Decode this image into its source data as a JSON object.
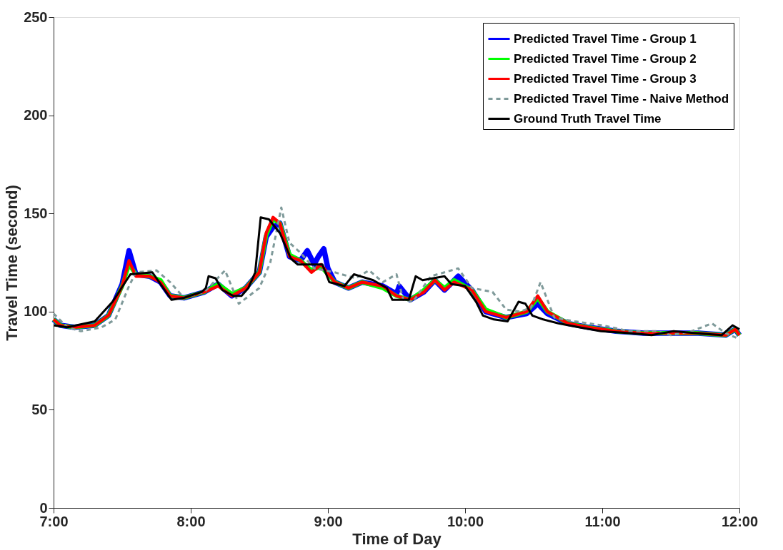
{
  "chart_data": {
    "type": "line",
    "xlabel": "Time of Day",
    "ylabel": "Travel Time (second)",
    "xlim": [
      7,
      12
    ],
    "ylim": [
      0,
      250
    ],
    "xticks": [
      {
        "value": 7,
        "label": "7:00"
      },
      {
        "value": 8,
        "label": "8:00"
      },
      {
        "value": 9,
        "label": "9:00"
      },
      {
        "value": 10,
        "label": "10:00"
      },
      {
        "value": 11,
        "label": "11:00"
      },
      {
        "value": 12,
        "label": "12:00"
      }
    ],
    "yticks": [
      0,
      50,
      100,
      150,
      200,
      250
    ],
    "grid": false,
    "legend": "top right",
    "marker": "none",
    "series": [
      {
        "name": "Predicted Travel Time - Group 1",
        "color": "#0000ff",
        "line_style": "solid",
        "x": [
          7,
          7.05,
          7.15,
          7.3,
          7.4,
          7.5,
          7.55,
          7.6,
          7.7,
          7.78,
          7.85,
          7.95,
          8.1,
          8.2,
          8.3,
          8.4,
          8.5,
          8.55,
          8.6,
          8.65,
          8.72,
          8.8,
          8.85,
          8.9,
          8.93,
          8.97,
          9.0,
          9.05,
          9.15,
          9.25,
          9.4,
          9.5,
          9.52,
          9.6,
          9.7,
          9.78,
          9.85,
          9.95,
          10.05,
          10.15,
          10.3,
          10.45,
          10.53,
          10.6,
          10.75,
          10.9,
          11.1,
          11.3,
          11.5,
          11.7,
          11.9,
          11.97,
          12
        ],
        "values": [
          96,
          93,
          92,
          93,
          98,
          114,
          131,
          119,
          118,
          115,
          108,
          107,
          110,
          114,
          108,
          112,
          120,
          138,
          143,
          145,
          128,
          126,
          131,
          124,
          128,
          132,
          122,
          115,
          112,
          115,
          113,
          109,
          113,
          106,
          110,
          116,
          111,
          118,
          111,
          100,
          97,
          99,
          104,
          99,
          94,
          92,
          90,
          89,
          89,
          89,
          88,
          91,
          88
        ]
      },
      {
        "name": "Predicted Travel Time - Group 2",
        "color": "#00ff00",
        "line_style": "solid",
        "x": [
          7,
          7.05,
          7.15,
          7.3,
          7.4,
          7.5,
          7.55,
          7.6,
          7.7,
          7.78,
          7.85,
          7.95,
          8.1,
          8.2,
          8.3,
          8.4,
          8.5,
          8.55,
          8.6,
          8.65,
          8.72,
          8.8,
          8.88,
          8.95,
          9.05,
          9.15,
          9.25,
          9.4,
          9.5,
          9.6,
          9.7,
          9.78,
          9.85,
          9.92,
          10.05,
          10.15,
          10.3,
          10.45,
          10.53,
          10.6,
          10.75,
          10.9,
          11.1,
          11.3,
          11.5,
          11.7,
          11.9,
          11.97,
          12
        ],
        "values": [
          96,
          93,
          92,
          93,
          98,
          113,
          124,
          119,
          118,
          116,
          108,
          107,
          110,
          114,
          109,
          112,
          120,
          139,
          147,
          145,
          129,
          126,
          121,
          123,
          115,
          112,
          115,
          112,
          108,
          106,
          111,
          116,
          112,
          116,
          111,
          101,
          97,
          100,
          107,
          100,
          94,
          92,
          90,
          89,
          89,
          89,
          88,
          91,
          88
        ]
      },
      {
        "name": "Predicted Travel Time - Group 3",
        "color": "#ff0000",
        "line_style": "solid",
        "x": [
          7,
          7.05,
          7.15,
          7.3,
          7.4,
          7.5,
          7.55,
          7.6,
          7.7,
          7.78,
          7.85,
          7.95,
          8.1,
          8.2,
          8.3,
          8.4,
          8.5,
          8.55,
          8.6,
          8.65,
          8.72,
          8.8,
          8.88,
          8.95,
          9.05,
          9.15,
          9.25,
          9.4,
          9.5,
          9.6,
          9.7,
          9.78,
          9.85,
          9.92,
          10.05,
          10.15,
          10.3,
          10.45,
          10.53,
          10.6,
          10.75,
          10.9,
          11.1,
          11.3,
          11.5,
          11.7,
          11.9,
          11.97,
          12
        ],
        "values": [
          96,
          93,
          92,
          93,
          98,
          113,
          126,
          118,
          118,
          115,
          108,
          107,
          110,
          113,
          108,
          112,
          120,
          140,
          148,
          145,
          128,
          126,
          120,
          124,
          115,
          112,
          115,
          113,
          108,
          106,
          110,
          116,
          111,
          115,
          111,
          100,
          97,
          100,
          108,
          100,
          94,
          92,
          90,
          89,
          89,
          89,
          88,
          91,
          88
        ]
      },
      {
        "name": "Predicted Travel Time - Naive Method",
        "color": "#7f9a9a",
        "line_style": "dashed",
        "x": [
          7,
          7.1,
          7.2,
          7.35,
          7.45,
          7.55,
          7.6,
          7.75,
          7.85,
          7.95,
          8.1,
          8.25,
          8.35,
          8.5,
          8.58,
          8.66,
          8.72,
          8.8,
          8.9,
          9.05,
          9.2,
          9.3,
          9.4,
          9.5,
          9.55,
          9.62,
          9.75,
          9.85,
          9.95,
          10.05,
          10.2,
          10.3,
          10.4,
          10.48,
          10.55,
          10.65,
          10.8,
          11,
          11.2,
          11.4,
          11.5,
          11.65,
          11.8,
          11.9,
          12
        ],
        "values": [
          99,
          92,
          90,
          92,
          96,
          113,
          120,
          121,
          115,
          107,
          110,
          121,
          104,
          112,
          125,
          153,
          135,
          130,
          122,
          120,
          117,
          121,
          115,
          119,
          106,
          105,
          118,
          120,
          122,
          112,
          110,
          101,
          100,
          102,
          115,
          97,
          95,
          93,
          90,
          90,
          88,
          90,
          94,
          89,
          86
        ]
      },
      {
        "name": "Ground Truth Travel Time",
        "color": "#000000",
        "line_style": "solid",
        "x": [
          7,
          7.1,
          7.3,
          7.43,
          7.56,
          7.72,
          7.79,
          7.86,
          7.95,
          8.08,
          8.11,
          8.13,
          8.18,
          8.23,
          8.31,
          8.37,
          8.42,
          8.47,
          8.51,
          8.57,
          8.65,
          8.73,
          8.78,
          8.96,
          9.01,
          9.12,
          9.19,
          9.33,
          9.43,
          9.47,
          9.59,
          9.64,
          9.69,
          9.85,
          9.9,
          10,
          10.08,
          10.13,
          10.21,
          10.31,
          10.39,
          10.44,
          10.49,
          10.57,
          10.68,
          10.83,
          10.99,
          11.2,
          11.36,
          11.52,
          11.68,
          11.87,
          11.95,
          12
        ],
        "values": [
          93,
          92,
          95,
          105,
          119,
          120,
          113,
          106,
          107,
          110,
          112,
          118,
          117,
          111,
          108,
          108,
          112,
          120,
          148,
          147,
          140,
          127,
          124,
          124,
          115,
          113,
          119,
          116,
          112,
          106,
          106,
          118,
          116,
          118,
          114,
          113,
          105,
          98,
          96,
          95,
          105,
          104,
          98,
          96,
          94,
          92,
          90,
          89,
          88,
          90,
          89,
          88,
          93,
          91
        ]
      }
    ]
  }
}
